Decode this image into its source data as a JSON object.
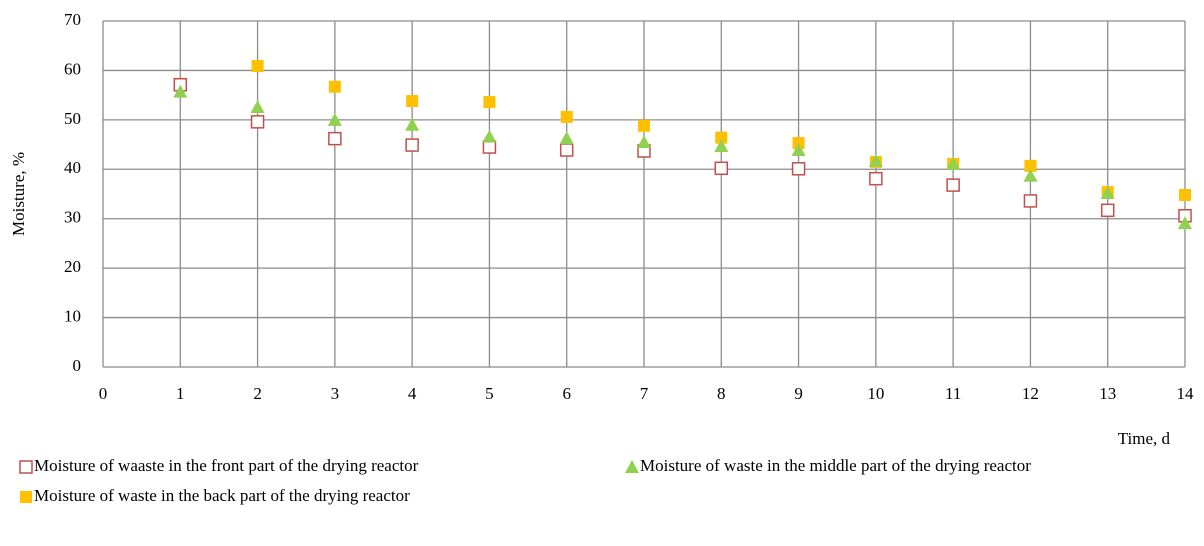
{
  "chart_data": {
    "type": "scatter",
    "x_label": "Time, d",
    "y_label": "Moisture, %",
    "xlim": [
      0,
      14
    ],
    "xticks": [
      0,
      1,
      2,
      3,
      4,
      5,
      6,
      7,
      8,
      9,
      10,
      11,
      12,
      13,
      14
    ],
    "ylim": [
      0,
      70
    ],
    "yticks": [
      0,
      10,
      20,
      30,
      40,
      50,
      60,
      70
    ],
    "grid": true,
    "legend": "bottom",
    "series": [
      {
        "name": "Moisture of waaste in the front part of the drying reactor",
        "color": "#c0504d",
        "marker": "square-open",
        "x": [
          1,
          2,
          3,
          4,
          5,
          6,
          7,
          8,
          9,
          10,
          11,
          12,
          13,
          14
        ],
        "values": [
          57.1,
          49.6,
          46.2,
          44.9,
          44.5,
          43.9,
          43.7,
          40.2,
          40.1,
          38.1,
          36.8,
          33.6,
          31.7,
          30.6
        ]
      },
      {
        "name": "Moisture of waste in the middle part of the drying reactor",
        "color": "#92d050",
        "marker": "triangle",
        "x": [
          1,
          2,
          3,
          4,
          5,
          6,
          7,
          8,
          9,
          10,
          11,
          12,
          13,
          14
        ],
        "values": [
          55.7,
          52.6,
          50,
          49,
          46.6,
          46.3,
          45.5,
          44.7,
          43.9,
          41.7,
          41.1,
          38.7,
          35.2,
          29.1
        ]
      },
      {
        "name": "Moisture of waste in the back part of the drying reactor",
        "color": "#ffc000",
        "marker": "square",
        "x": [
          1,
          2,
          3,
          4,
          5,
          6,
          7,
          8,
          9,
          10,
          11,
          12,
          13,
          14
        ],
        "values": [
          57.3,
          60.9,
          56.7,
          53.8,
          53.6,
          50.6,
          48.8,
          46.4,
          45.3,
          41.5,
          41.1,
          40.7,
          35.4,
          34.8
        ]
      }
    ]
  }
}
